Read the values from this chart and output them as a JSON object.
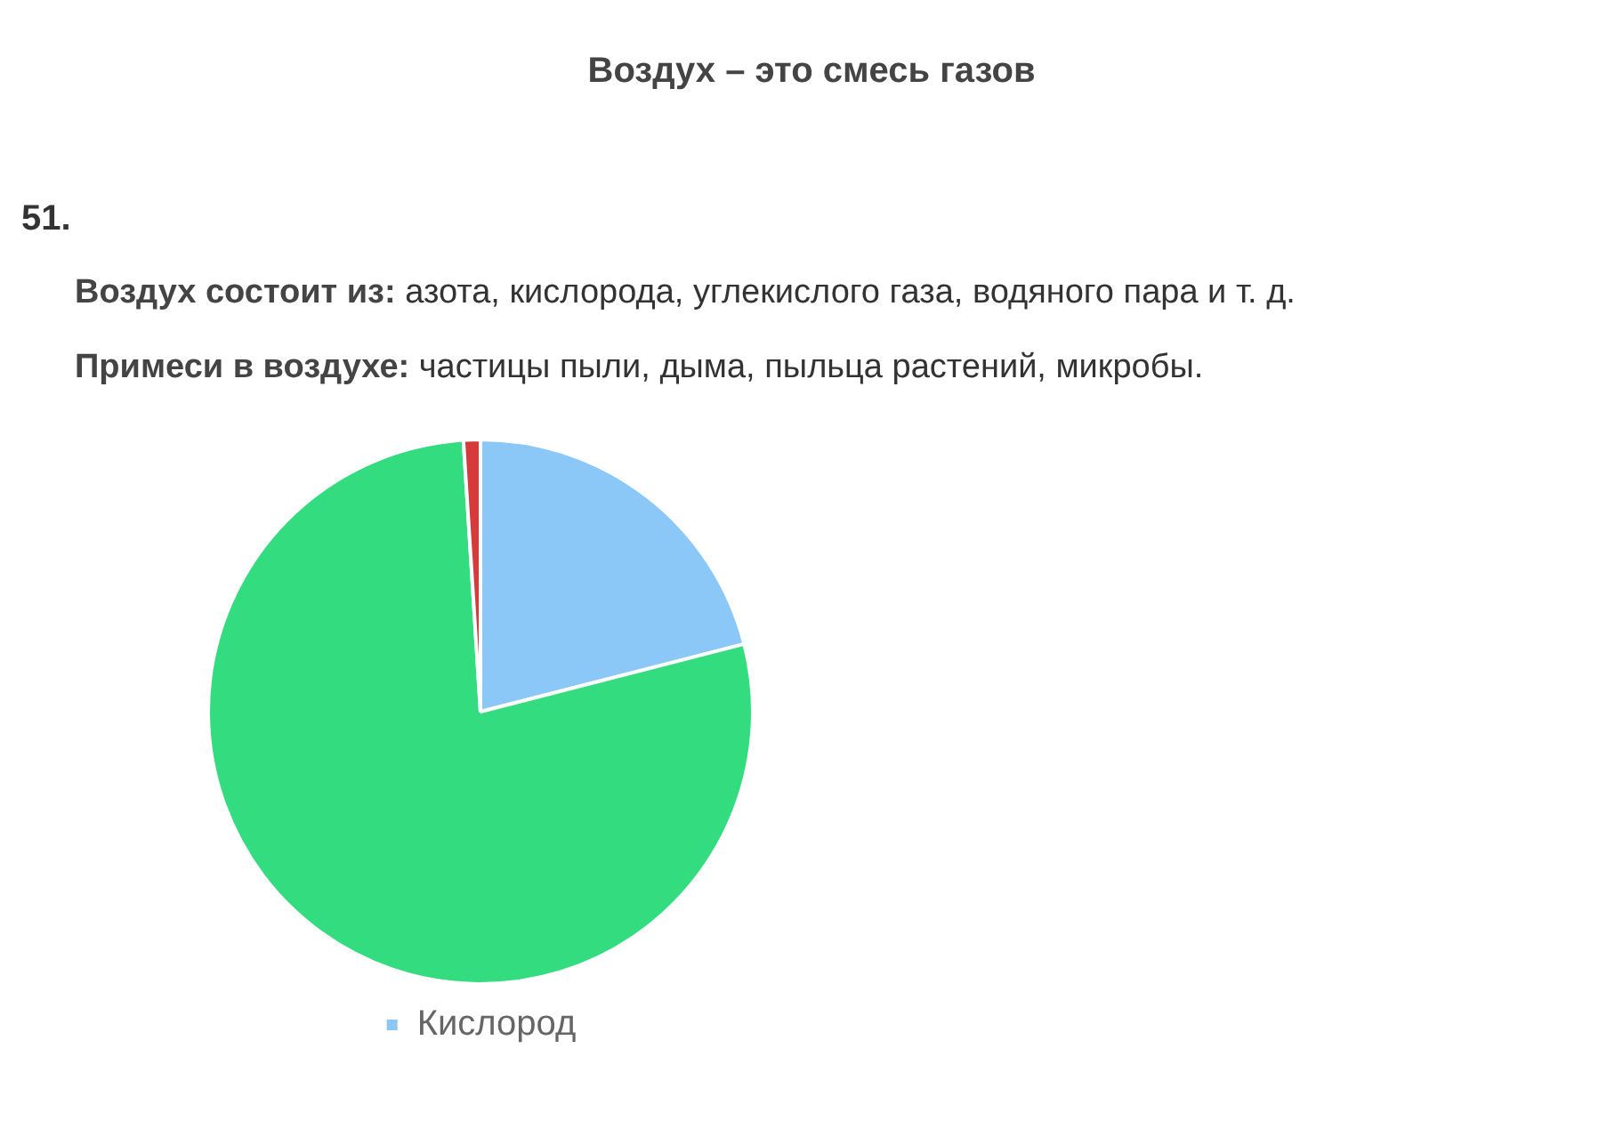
{
  "chart_data": {
    "type": "pie",
    "title": "Воздух – это смесь газов",
    "annotations": [
      "51.",
      "Воздух состоит из: азота, кислорода, углекислого газа, водяного пара и т. д.",
      "Примеси в воздухе: частицы пыли, дыма, пыльца растений, микробы."
    ],
    "categories": [
      "Кислород",
      null,
      null
    ],
    "values": [
      21,
      78,
      1
    ],
    "colors": [
      "#8cc8f7",
      "#33dc7f",
      "#d63a3a"
    ],
    "legend": "bottom"
  }
}
